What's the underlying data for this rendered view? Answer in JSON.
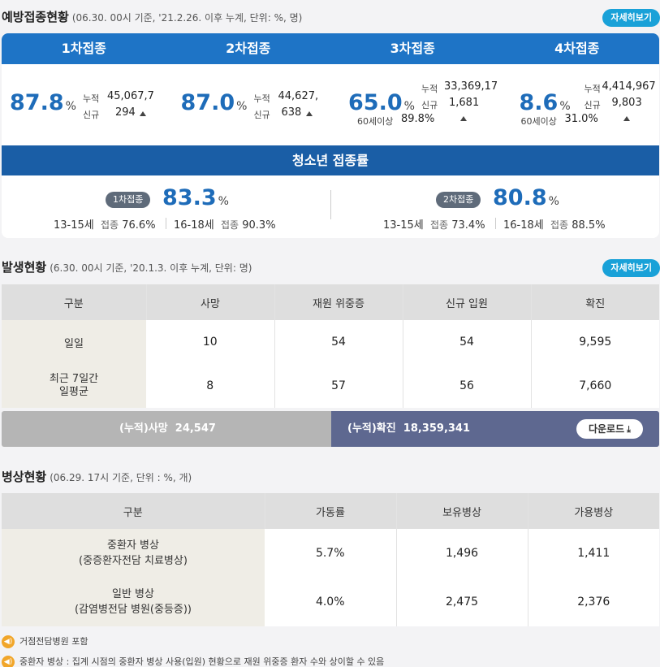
{
  "vaccination": {
    "title": "예방접종현황",
    "note": "(06.30. 00시 기준, '21.2.26. 이후 누계, 단위: %, 명)",
    "detail_label": "자세히보기",
    "doses": [
      {
        "label": "1차접종",
        "rate": "87.8",
        "cum_label": "누적",
        "cum": "45,067,7",
        "new_label": "신규",
        "new": "294",
        "sub": ""
      },
      {
        "label": "2차접종",
        "rate": "87.0",
        "cum_label": "누적",
        "cum": "44,627,",
        "new_label": "신규",
        "new": "638",
        "sub": ""
      },
      {
        "label": "3차접종",
        "rate": "65.0",
        "cum_label": "누적",
        "cum": "33,369,17",
        "new_label": "신규",
        "new": "1,681",
        "sub_label": "60세이상",
        "sub": "89.8%"
      },
      {
        "label": "4차접종",
        "rate": "8.6",
        "cum_label": "누적",
        "cum": "4,414,967",
        "new_label": "신규",
        "new": "9,803",
        "sub_label": "60세이상",
        "sub": "31.0%"
      }
    ],
    "pct": "%",
    "teen": {
      "title": "청소년 접종률",
      "first": {
        "pill": "1차접종",
        "rate": "83.3",
        "a_age": "13-15세",
        "a_k": "접종",
        "a_v": "76.6%",
        "b_age": "16-18세",
        "b_k": "접종",
        "b_v": "90.3%"
      },
      "second": {
        "pill": "2차접종",
        "rate": "80.8",
        "a_age": "13-15세",
        "a_k": "접종",
        "a_v": "73.4%",
        "b_age": "16-18세",
        "b_k": "접종",
        "b_v": "88.5%"
      }
    }
  },
  "outbreak": {
    "title": "발생현황",
    "note": "(6.30. 00시 기준, '20.1.3. 이후 누계, 단위: 명)",
    "detail_label": "자세히보기",
    "headers": [
      "구분",
      "사망",
      "재원 위중증",
      "신규 입원",
      "확진"
    ],
    "rows": [
      {
        "label": "일일",
        "cells": [
          "10",
          "54",
          "54",
          "9,595"
        ]
      },
      {
        "label": "최근 7일간\n일평균",
        "cells": [
          "8",
          "57",
          "56",
          "7,660"
        ]
      }
    ],
    "total_death": "(누적)사망  24,547",
    "total_confirmed": "(누적)확진  18,359,341",
    "download_label": "다운로드"
  },
  "beds": {
    "title": "병상현황",
    "note": "(06.29. 17시 기준, 단위 : %, 개)",
    "headers": [
      "구분",
      "가동률",
      "보유병상",
      "가용병상"
    ],
    "rows": [
      {
        "label": "중환자 병상\n(중증환자전담 치료병상)",
        "cells": [
          "5.7%",
          "1,496",
          "1,411"
        ]
      },
      {
        "label": "일반 병상\n(감염병전담 병원(중등증))",
        "cells": [
          "4.0%",
          "2,475",
          "2,376"
        ]
      }
    ]
  },
  "notes": [
    "거점전담병원 포함",
    "중환자 병상 : 집계 시점의 중환자 병상 사용(입원) 현황으로 재원 위중증 환자 수와 상이할 수 있음"
  ],
  "colors": {
    "blue": "#1e74c6",
    "dark_blue": "#1a5ea6",
    "accent": "#19a1d8",
    "total_right": "#5e6890"
  }
}
